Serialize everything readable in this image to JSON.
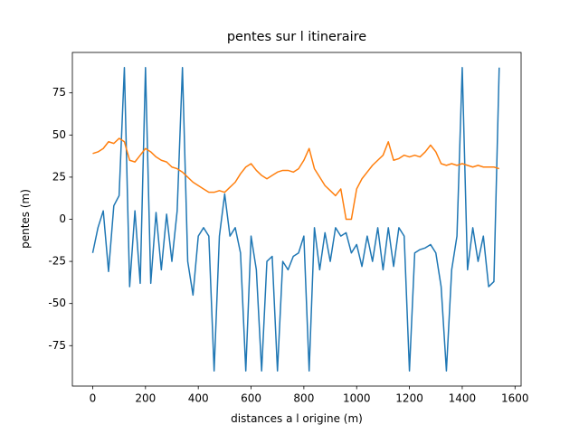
{
  "chart_data": {
    "type": "line",
    "title": "pentes sur l itineraire",
    "x_label": "distances a l origine (m)",
    "y_label": "pentes (m)",
    "x": [
      0,
      20,
      40,
      60,
      80,
      100,
      120,
      140,
      160,
      180,
      200,
      220,
      240,
      260,
      280,
      300,
      320,
      340,
      360,
      380,
      400,
      420,
      440,
      460,
      480,
      500,
      520,
      540,
      560,
      580,
      600,
      620,
      640,
      660,
      680,
      700,
      720,
      740,
      760,
      780,
      800,
      820,
      840,
      860,
      880,
      900,
      920,
      940,
      960,
      980,
      1000,
      1020,
      1040,
      1060,
      1080,
      1100,
      1120,
      1140,
      1160,
      1180,
      1200,
      1220,
      1240,
      1260,
      1280,
      1300,
      1320,
      1340,
      1360,
      1380,
      1400,
      1420,
      1440,
      1460,
      1480,
      1500,
      1520,
      1540
    ],
    "series": [
      {
        "color": "#1f77b4",
        "values": [
          -20,
          -5,
          5,
          -31,
          8,
          14,
          90,
          -40,
          5,
          -38,
          90,
          -38,
          4,
          -30,
          3,
          -25,
          5,
          90,
          -25,
          -45,
          -10,
          -5,
          -10,
          -90,
          -10,
          15,
          -10,
          -5,
          -20,
          -90,
          -10,
          -30,
          -90,
          -25,
          -22,
          -90,
          -25,
          -30,
          -22,
          -20,
          -10,
          -90,
          -5,
          -30,
          -8,
          -25,
          -5,
          -10,
          -8,
          -20,
          -15,
          -28,
          -10,
          -25,
          -5,
          -30,
          -5,
          -28,
          -5,
          -10,
          -90,
          -20,
          -18,
          -17,
          -15,
          -20,
          -40,
          -90,
          -30,
          -10,
          90,
          -30,
          -5,
          -25,
          -10,
          -40,
          -37,
          90
        ]
      },
      {
        "color": "#ff7f0e",
        "values": [
          39,
          40,
          42,
          46,
          45,
          48,
          46,
          35,
          34,
          38,
          42,
          40,
          37,
          35,
          34,
          31,
          30,
          28,
          25,
          22,
          20,
          18,
          16,
          16,
          17,
          16,
          19,
          22,
          27,
          31,
          33,
          29,
          26,
          24,
          26,
          28,
          29,
          29,
          28,
          30,
          35,
          42,
          30,
          25,
          20,
          17,
          14,
          18,
          0,
          0,
          18,
          24,
          28,
          32,
          35,
          38,
          46,
          35,
          36,
          38,
          37,
          38,
          37,
          40,
          44,
          40,
          33,
          32,
          33,
          32,
          33,
          32,
          31,
          32,
          31,
          31,
          31,
          30
        ]
      }
    ],
    "xlim": [
      -77,
      1623
    ],
    "ylim": [
      -99,
      99
    ],
    "xticks": [
      0,
      200,
      400,
      600,
      800,
      1000,
      1200,
      1400,
      1600
    ],
    "yticks": [
      -75,
      -50,
      -25,
      0,
      25,
      50,
      75
    ]
  }
}
